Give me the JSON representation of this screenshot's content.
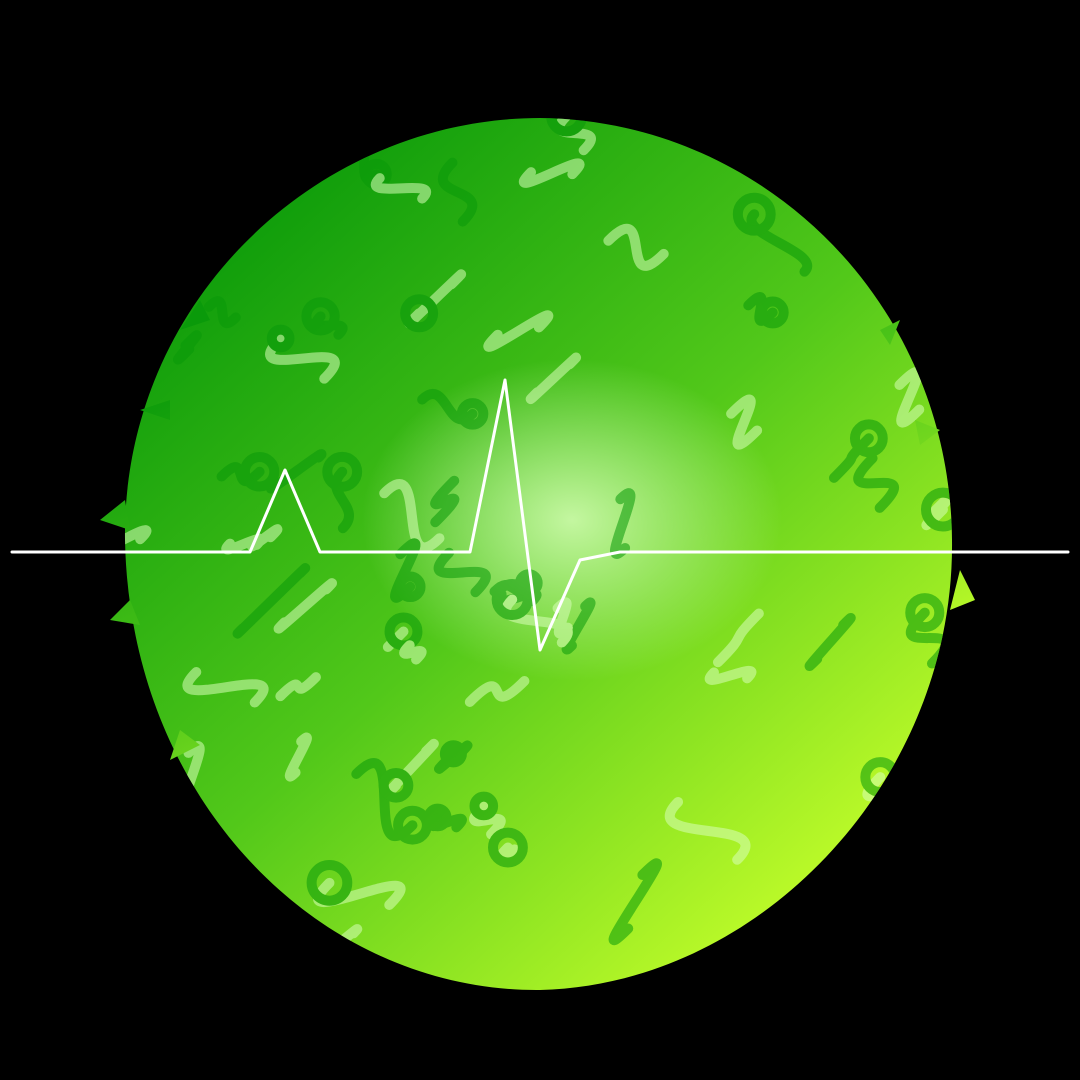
{
  "artwork": {
    "subject": "leaf-pattern-circle",
    "motif": "heartbeat-line",
    "colors": {
      "background": "#000000",
      "gradient_start": "#0a9a0a",
      "gradient_mid": "#52c81a",
      "gradient_end": "#c6ff2a",
      "highlight": "#d8ffb8",
      "pulse_line": "#ffffff"
    },
    "icons": [
      "leaf-icon",
      "heartbeat-icon"
    ]
  }
}
